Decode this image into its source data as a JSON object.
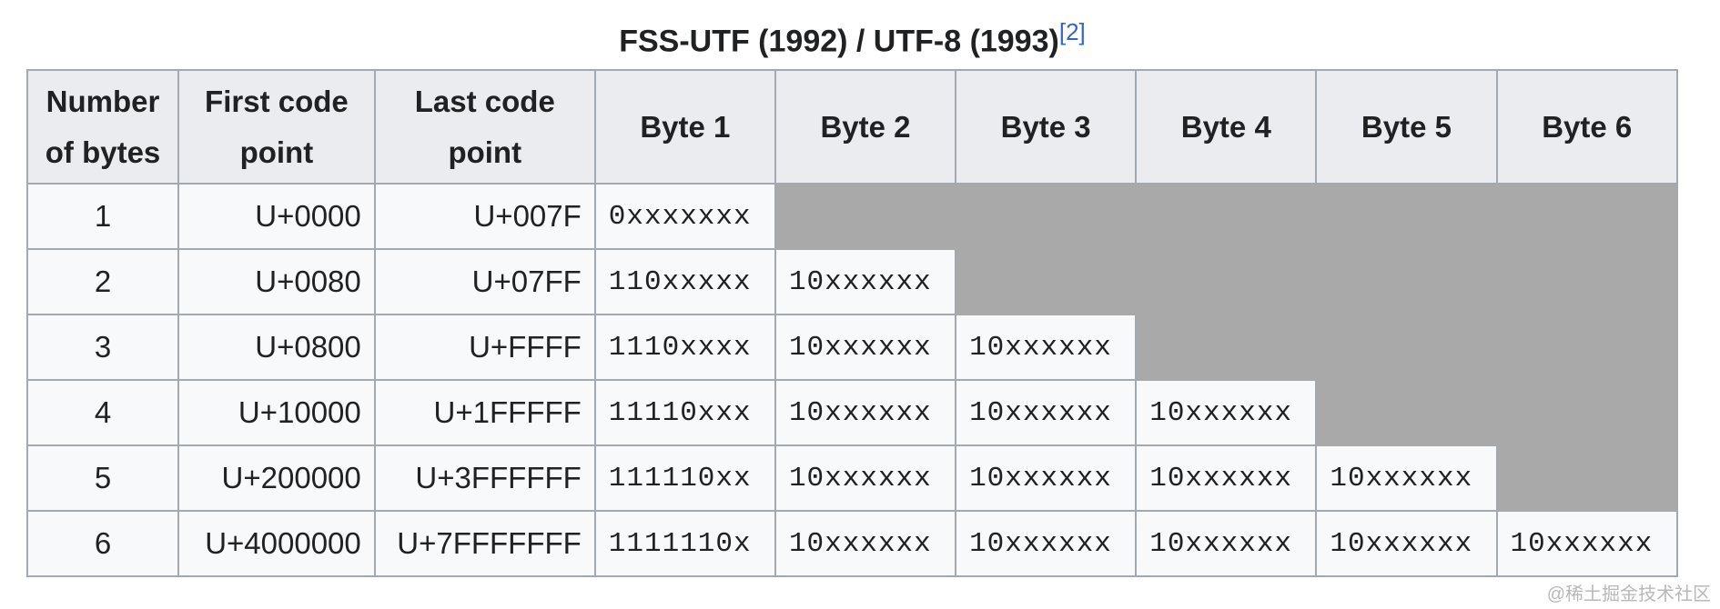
{
  "caption": {
    "title": "FSS-UTF (1992) / UTF-8 (1993)",
    "ref": "[2]"
  },
  "headers": [
    "Number of bytes",
    "First code point",
    "Last code point",
    "Byte 1",
    "Byte 2",
    "Byte 3",
    "Byte 4",
    "Byte 5",
    "Byte 6"
  ],
  "rows": [
    {
      "n": "1",
      "first": "U+0000",
      "last": "U+007F",
      "bytes": [
        "0xxxxxxx"
      ]
    },
    {
      "n": "2",
      "first": "U+0080",
      "last": "U+07FF",
      "bytes": [
        "110xxxxx",
        "10xxxxxx"
      ]
    },
    {
      "n": "3",
      "first": "U+0800",
      "last": "U+FFFF",
      "bytes": [
        "1110xxxx",
        "10xxxxxx",
        "10xxxxxx"
      ]
    },
    {
      "n": "4",
      "first": "U+10000",
      "last": "U+1FFFFF",
      "bytes": [
        "11110xxx",
        "10xxxxxx",
        "10xxxxxx",
        "10xxxxxx"
      ]
    },
    {
      "n": "5",
      "first": "U+200000",
      "last": "U+3FFFFFF",
      "bytes": [
        "111110xx",
        "10xxxxxx",
        "10xxxxxx",
        "10xxxxxx",
        "10xxxxxx"
      ]
    },
    {
      "n": "6",
      "first": "U+4000000",
      "last": "U+7FFFFFFF",
      "bytes": [
        "1111110x",
        "10xxxxxx",
        "10xxxxxx",
        "10xxxxxx",
        "10xxxxxx",
        "10xxxxxx"
      ]
    }
  ],
  "colors": {
    "header_bg": "#eaecf0",
    "cell_bg": "#f8f9fa",
    "unused_bg": "#a9a9a9",
    "border": "#a2a9b1",
    "link": "#3366cc"
  },
  "watermark": "@稀土掘金技术社区"
}
